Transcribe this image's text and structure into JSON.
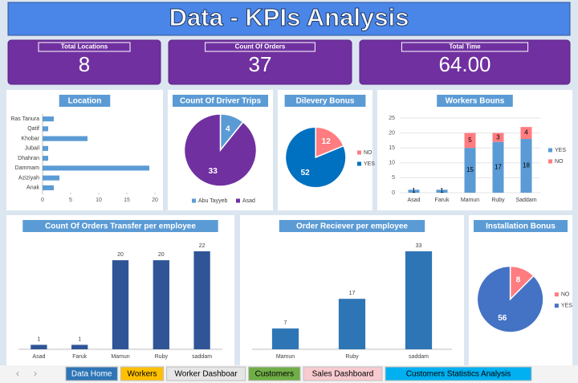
{
  "header": {
    "title": "Data - KPIs  Analysis"
  },
  "kpis": [
    {
      "label": "Total Locations",
      "value": "8"
    },
    {
      "label": "Count Of Orders",
      "value": "37"
    },
    {
      "label": "Total Time",
      "value": "64.00"
    }
  ],
  "chart_data": [
    {
      "type": "hbar",
      "title": "Location",
      "categories": [
        "Ras Tanura",
        "Qatif",
        "Khobar",
        "Jubail",
        "Dhahran",
        "Dammam",
        "Aziziyah",
        "Anak"
      ],
      "values": [
        2,
        1,
        8,
        1,
        1,
        19,
        3,
        2
      ],
      "color": "#5b9bd5",
      "xlim": [
        0,
        20
      ],
      "xticks": [
        0,
        5,
        10,
        15,
        20
      ]
    },
    {
      "type": "pie",
      "title": "Count Of Driver Trips",
      "categories": [
        "Abu Tayyeb",
        "Asad"
      ],
      "values": [
        4,
        33
      ],
      "colors": [
        "#5b9bd5",
        "#7030a0"
      ],
      "legend": "bottom"
    },
    {
      "type": "pie",
      "title": "Dilevery Bonus",
      "categories": [
        "NO",
        "YES"
      ],
      "values": [
        12,
        52
      ],
      "colors": [
        "#ff7c80",
        "#0070c0"
      ],
      "legend": "right"
    },
    {
      "type": "stacked",
      "title": "Workers Bouns",
      "categories": [
        "Asad",
        "Faruk",
        "Mamun",
        "Ruby",
        "Saddam"
      ],
      "series": [
        {
          "name": "YES",
          "color": "#5b9bd5",
          "values": [
            1,
            1,
            15,
            17,
            18
          ]
        },
        {
          "name": "NO",
          "color": "#ff7c80",
          "values": [
            null,
            null,
            5,
            3,
            4
          ]
        }
      ],
      "ylim": [
        0,
        25
      ],
      "yticks": [
        0,
        5,
        10,
        15,
        20,
        25
      ],
      "legend": "right"
    },
    {
      "type": "bar",
      "title": "Count Of Orders Transfer per employee",
      "categories": [
        "Asad",
        "Faruk",
        "Mamun",
        "Ruby",
        "saddam"
      ],
      "values": [
        1,
        1,
        20,
        20,
        22
      ],
      "color": "#2f5597"
    },
    {
      "type": "bar",
      "title": "Order Reciever per employee",
      "categories": [
        "Mamun",
        "Ruby",
        "saddam"
      ],
      "values": [
        7,
        17,
        33
      ],
      "color": "#2e75b6"
    },
    {
      "type": "pie",
      "title": "Installation Bonus",
      "categories": [
        "NO",
        "YES"
      ],
      "values": [
        8,
        56
      ],
      "colors": [
        "#ff7c80",
        "#4472c4"
      ],
      "legend": "right"
    }
  ],
  "tabs": [
    "Data Home",
    "Workers",
    "Worker Dashboar",
    "Customers",
    "Sales Dashboard",
    "Customers  Statistics Analysis"
  ]
}
